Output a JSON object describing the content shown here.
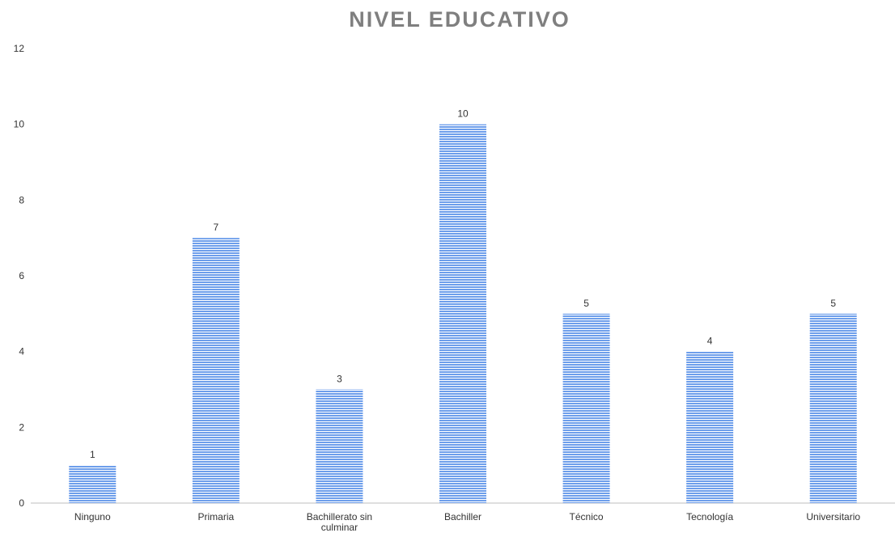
{
  "chart_data": {
    "type": "bar",
    "title": "NIVEL EDUCATIVO",
    "categories": [
      "Ninguno",
      "Primaria",
      "Bachillerato sin culminar",
      "Bachiller",
      "Técnico",
      "Tecnología",
      "Universitario"
    ],
    "values": [
      1,
      7,
      3,
      10,
      5,
      4,
      5
    ],
    "ylim": [
      0,
      12
    ],
    "yticks": [
      0,
      2,
      4,
      6,
      8,
      10,
      12
    ],
    "xlabel": "",
    "ylabel": "",
    "grid": false,
    "legend": "none",
    "bar_color": "#6d9eeb",
    "bar_stripe_color": "#ffffff"
  }
}
